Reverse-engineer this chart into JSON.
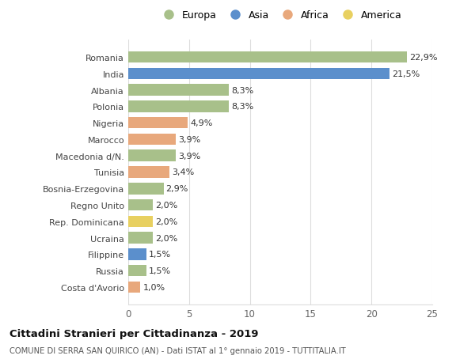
{
  "categories": [
    "Costa d'Avorio",
    "Russia",
    "Filippine",
    "Ucraina",
    "Rep. Dominicana",
    "Regno Unito",
    "Bosnia-Erzegovina",
    "Tunisia",
    "Macedonia d/N.",
    "Marocco",
    "Nigeria",
    "Polonia",
    "Albania",
    "India",
    "Romania"
  ],
  "values": [
    1.0,
    1.5,
    1.5,
    2.0,
    2.0,
    2.0,
    2.9,
    3.4,
    3.9,
    3.9,
    4.9,
    8.3,
    8.3,
    21.5,
    22.9
  ],
  "labels": [
    "1,0%",
    "1,5%",
    "1,5%",
    "2,0%",
    "2,0%",
    "2,0%",
    "2,9%",
    "3,4%",
    "3,9%",
    "3,9%",
    "4,9%",
    "8,3%",
    "8,3%",
    "21,5%",
    "22,9%"
  ],
  "colors": [
    "#e8a87c",
    "#a8c08a",
    "#5b8fcc",
    "#a8c08a",
    "#e8d060",
    "#a8c08a",
    "#a8c08a",
    "#e8a87c",
    "#a8c08a",
    "#e8a87c",
    "#e8a87c",
    "#a8c08a",
    "#a8c08a",
    "#5b8fcc",
    "#a8c08a"
  ],
  "legend_labels": [
    "Europa",
    "Asia",
    "Africa",
    "America"
  ],
  "legend_colors": [
    "#a8c08a",
    "#5b8fcc",
    "#e8a87c",
    "#e8d060"
  ],
  "title": "Cittadini Stranieri per Cittadinanza - 2019",
  "subtitle": "COMUNE DI SERRA SAN QUIRICO (AN) - Dati ISTAT al 1° gennaio 2019 - TUTTITALIA.IT",
  "xlim": [
    0,
    25
  ],
  "xticks": [
    0,
    5,
    10,
    15,
    20,
    25
  ],
  "bg_color": "#ffffff",
  "grid_color": "#dddddd",
  "bar_height": 0.7
}
